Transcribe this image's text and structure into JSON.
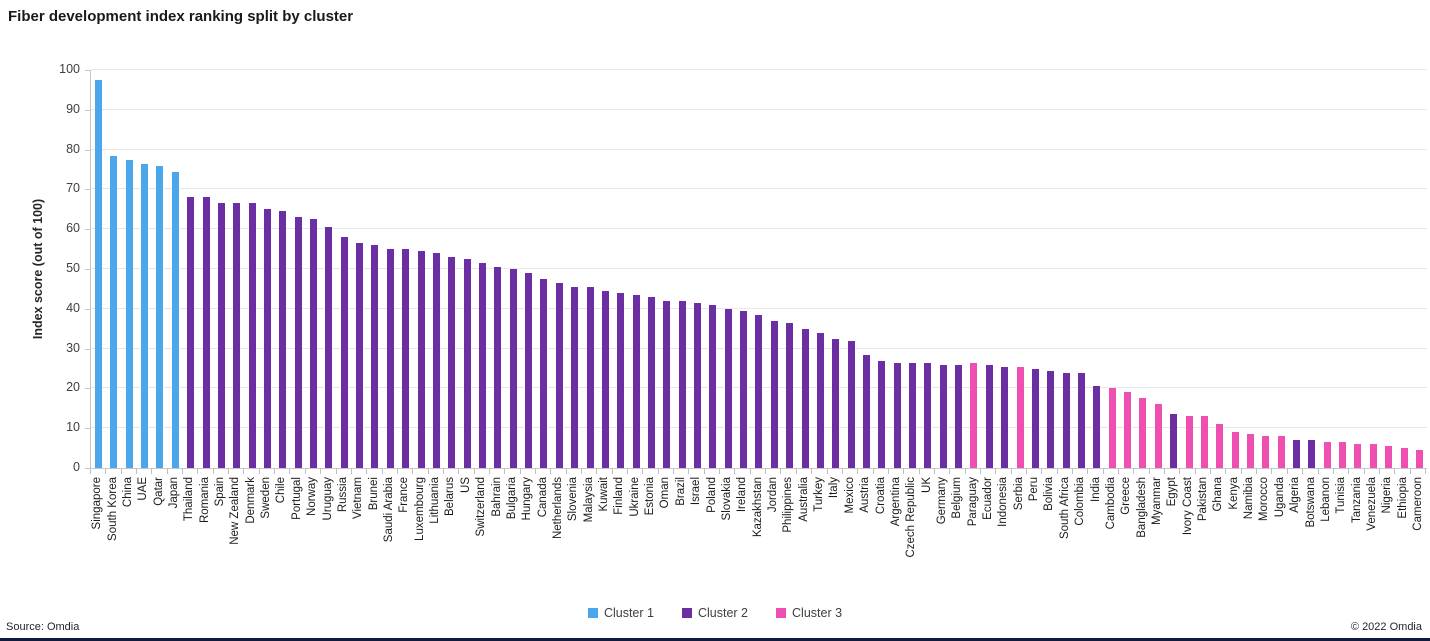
{
  "title": "Fiber development index ranking split by cluster",
  "footer": {
    "source": "Source: Omdia",
    "copyright": "© 2022 Omdia"
  },
  "legend": [
    {
      "label": "Cluster 1",
      "color": "#4BA6EB"
    },
    {
      "label": "Cluster 2",
      "color": "#6B2FA3"
    },
    {
      "label": "Cluster 3",
      "color": "#EE4FB0"
    }
  ],
  "chart_data": {
    "type": "bar",
    "title": "Fiber development index ranking split by cluster",
    "xlabel": "",
    "ylabel": "Index score (out of 100)",
    "ylim": [
      0,
      100
    ],
    "yticks": [
      0,
      10,
      20,
      30,
      40,
      50,
      60,
      70,
      80,
      90,
      100
    ],
    "grid": true,
    "legend_position": "bottom",
    "cluster_colors": {
      "1": "#4BA6EB",
      "2": "#6B2FA3",
      "3": "#EE4FB0"
    },
    "categories": [
      "Singapore",
      "South Korea",
      "China",
      "UAE",
      "Qatar",
      "Japan",
      "Thailand",
      "Romania",
      "Spain",
      "New Zealand",
      "Denmark",
      "Sweden",
      "Chile",
      "Portugal",
      "Norway",
      "Uruguay",
      "Russia",
      "Vietnam",
      "Brunei",
      "Saudi Arabia",
      "France",
      "Luxembourg",
      "Lithuania",
      "Belarus",
      "US",
      "Switzerland",
      "Bahrain",
      "Bulgaria",
      "Hungary",
      "Canada",
      "Netherlands",
      "Slovenia",
      "Malaysia",
      "Kuwait",
      "Finland",
      "Ukraine",
      "Estonia",
      "Oman",
      "Brazil",
      "Israel",
      "Poland",
      "Slovakia",
      "Ireland",
      "Kazakhstan",
      "Jordan",
      "Philippines",
      "Australia",
      "Turkey",
      "Italy",
      "Mexico",
      "Austria",
      "Croatia",
      "Argentina",
      "Czech Republic",
      "UK",
      "Germany",
      "Belgium",
      "Paraguay",
      "Ecuador",
      "Indonesia",
      "Serbia",
      "Peru",
      "Bolivia",
      "South Africa",
      "Colombia",
      "India",
      "Cambodia",
      "Greece",
      "Bangladesh",
      "Myanmar",
      "Egypt",
      "Ivory Coast",
      "Pakistan",
      "Ghana",
      "Kenya",
      "Namibia",
      "Morocco",
      "Uganda",
      "Algeria",
      "Botswana",
      "Lebanon",
      "Tunisia",
      "Tanzania",
      "Venezuela",
      "Nigeria",
      "Ethiopia",
      "Cameroon"
    ],
    "values": [
      97.5,
      78.5,
      77.5,
      76.5,
      76,
      74.5,
      68,
      68,
      66.5,
      66.5,
      66.5,
      65,
      64.5,
      63,
      62.5,
      60.5,
      58,
      56.5,
      56,
      55,
      55,
      54.5,
      54,
      53,
      52.5,
      51.5,
      50.5,
      50,
      49,
      47.5,
      46.5,
      45.5,
      45.5,
      44.5,
      44,
      43.5,
      43,
      42,
      42,
      41.5,
      41,
      40,
      39.5,
      38.5,
      37,
      36.5,
      35,
      34,
      32.5,
      32,
      28.5,
      27,
      26.5,
      26.5,
      26.5,
      26,
      26,
      26.5,
      26,
      25.5,
      25.5,
      25,
      24.5,
      24,
      24,
      20.5,
      20,
      19,
      17.5,
      16,
      13.5,
      13,
      13,
      11,
      9,
      8.5,
      8,
      8,
      7,
      7,
      6.5,
      6.5,
      6,
      6,
      5.5,
      5,
      4.5
    ],
    "clusters": [
      1,
      1,
      1,
      1,
      1,
      1,
      2,
      2,
      2,
      2,
      2,
      2,
      2,
      2,
      2,
      2,
      2,
      2,
      2,
      2,
      2,
      2,
      2,
      2,
      2,
      2,
      2,
      2,
      2,
      2,
      2,
      2,
      2,
      2,
      2,
      2,
      2,
      2,
      2,
      2,
      2,
      2,
      2,
      2,
      2,
      2,
      2,
      2,
      2,
      2,
      2,
      2,
      2,
      2,
      2,
      2,
      2,
      3,
      2,
      2,
      3,
      2,
      2,
      2,
      2,
      2,
      3,
      3,
      3,
      3,
      2,
      3,
      3,
      3,
      3,
      3,
      3,
      3,
      2,
      2,
      3,
      3,
      3,
      3,
      3,
      3,
      3
    ]
  }
}
